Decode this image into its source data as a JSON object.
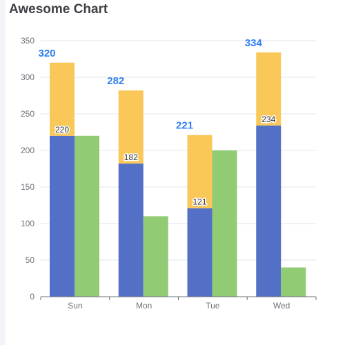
{
  "title": "Awesome Chart",
  "chart_data": {
    "type": "bar",
    "title": "Awesome Chart",
    "xlabel": "",
    "ylabel": "",
    "categories": [
      "Sun",
      "Mon",
      "Tue",
      "Wed"
    ],
    "ylim": [
      0,
      350
    ],
    "yticks": [
      "0",
      "50",
      "100",
      "150",
      "200",
      "250",
      "300",
      "350"
    ],
    "grid": true,
    "stacked_series": [
      {
        "values": [
          220,
          182,
          121,
          234
        ],
        "color": "#5470c6"
      },
      {
        "values": [
          100,
          100,
          100,
          100
        ],
        "color": "#fac858"
      }
    ],
    "side_series": [
      {
        "values": [
          220,
          110,
          200,
          40
        ],
        "color": "#91cc75"
      }
    ],
    "data_labels": [
      "220",
      "182",
      "121",
      "234"
    ],
    "totals": [
      "320",
      "282",
      "221",
      "334"
    ],
    "totals_color": "#2f7ff0"
  }
}
